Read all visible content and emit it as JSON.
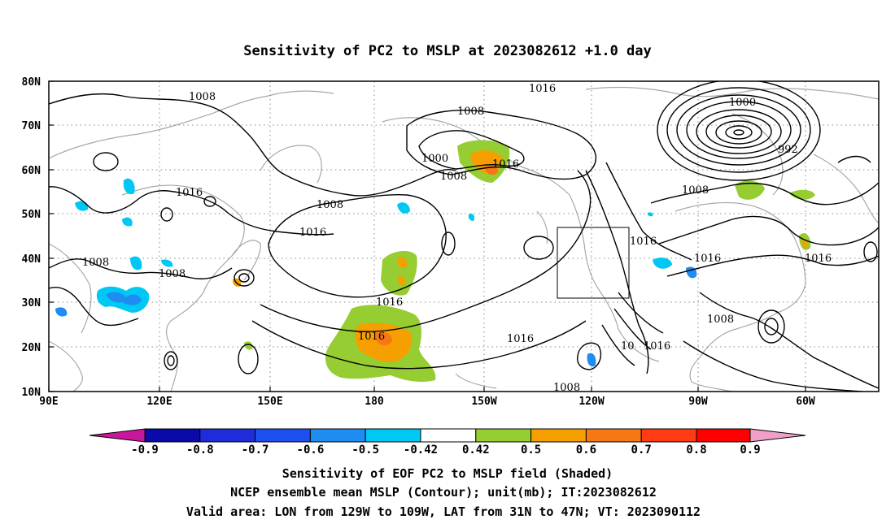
{
  "title": "Sensitivity of PC2 to MSLP at 2023082612 +1.0 day",
  "map": {
    "lat_labels": [
      "80N",
      "70N",
      "60N",
      "50N",
      "40N",
      "30N",
      "20N",
      "10N"
    ],
    "lon_labels": [
      "90E",
      "120E",
      "150E",
      "180",
      "150W",
      "120W",
      "90W",
      "60W"
    ],
    "contour_labels": [
      {
        "id": "c1",
        "text": "1008"
      },
      {
        "id": "c2",
        "text": "1016"
      },
      {
        "id": "c3",
        "text": "1008"
      },
      {
        "id": "c4",
        "text": "1000"
      },
      {
        "id": "c5",
        "text": "1008"
      },
      {
        "id": "c6",
        "text": "1016"
      },
      {
        "id": "c7",
        "text": "1000"
      },
      {
        "id": "c8",
        "text": "992"
      },
      {
        "id": "c9",
        "text": "1016"
      },
      {
        "id": "c10",
        "text": "1008"
      },
      {
        "id": "c11",
        "text": "1016"
      },
      {
        "id": "c12",
        "text": "1008"
      },
      {
        "id": "c13",
        "text": "1008"
      },
      {
        "id": "c14",
        "text": "1016"
      },
      {
        "id": "c15",
        "text": "1016"
      },
      {
        "id": "c16",
        "text": "1016"
      },
      {
        "id": "c17",
        "text": "1016"
      },
      {
        "id": "c18",
        "text": "1016"
      },
      {
        "id": "c19",
        "text": "1008"
      },
      {
        "id": "c20",
        "text": "1016"
      },
      {
        "id": "c21",
        "text": "1008"
      },
      {
        "id": "c22",
        "text": "10"
      },
      {
        "id": "c23",
        "text": "1016"
      },
      {
        "id": "c24",
        "text": "1008"
      }
    ]
  },
  "colorbar": {
    "labels": [
      "-0.9",
      "-0.8",
      "-0.7",
      "-0.6",
      "-0.5",
      "-0.42",
      "0.42",
      "0.5",
      "0.6",
      "0.7",
      "0.8",
      "0.9"
    ],
    "colors": {
      "lt_-0.9": "#c8179a",
      "-0.9_-0.8": "#0a0aa8",
      "-0.8_-0.7": "#1e2cdc",
      "-0.7_-0.6": "#1e50f0",
      "-0.6_-0.5": "#1e8cf0",
      "-0.5_-0.42": "#00c8f5",
      "-0.42_0.42": "#ffffff",
      "0.42_0.5": "#96cd32",
      "0.5_0.6": "#f5a000",
      "0.6_0.7": "#f57814",
      "0.7_0.8": "#ff3c14",
      "0.8_0.9": "#ff0000",
      "gt_0.9": "#f0a0c8"
    }
  },
  "captions": {
    "line1": "Sensitivity of EOF PC2 to MSLP field (Shaded)",
    "line2": "NCEP ensemble mean MSLP (Contour); unit(mb); IT:2023082612",
    "line3": "Valid area: LON from 129W to 109W, LAT from 31N to 47N; VT: 2023090112"
  }
}
